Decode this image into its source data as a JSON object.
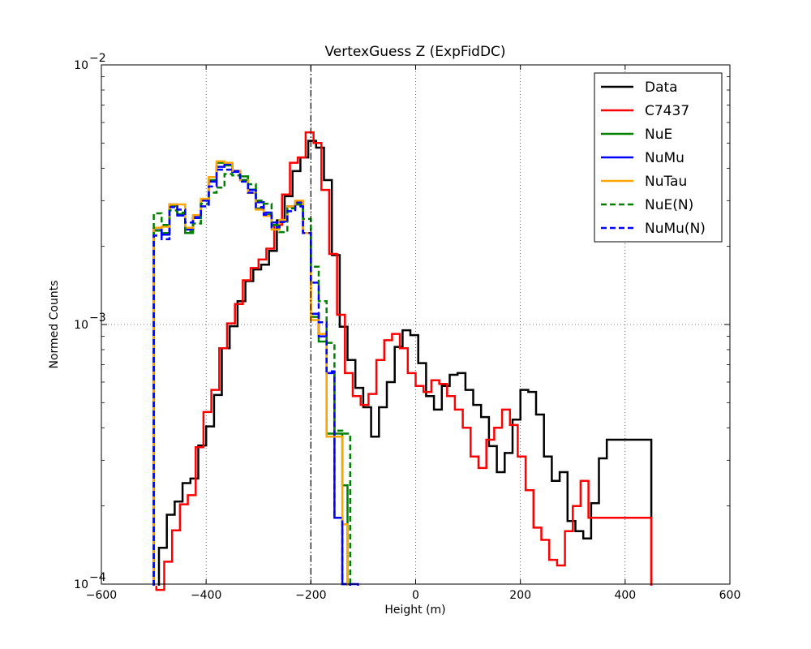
{
  "chart_data": {
    "type": "line",
    "step": "histogram",
    "title": "VertexGuess Z (ExpFidDC)",
    "xlabel": "Height (m)",
    "ylabel": "Normed Counts",
    "xlim": [
      -600,
      600
    ],
    "ylim": [
      0.0001,
      0.01
    ],
    "yscale": "log",
    "grid": true,
    "legend_position": "top-right",
    "x_ticks": [
      -600,
      -400,
      -200,
      0,
      200,
      400,
      600
    ],
    "x_tick_labels": [
      "−600",
      "−400",
      "−200",
      "0",
      "200",
      "400",
      "600"
    ],
    "y_ticks": [
      0.0001,
      0.001,
      0.01
    ],
    "y_tick_bases": [
      "10",
      "10",
      "10"
    ],
    "y_tick_exponents": [
      "−4",
      "−3",
      "−2"
    ],
    "reference_line": {
      "x": -200,
      "style": "dash-dot",
      "color": "#000000"
    },
    "series": [
      {
        "name": "Data",
        "color": "#000000",
        "dash": false,
        "x0": -490,
        "x1": 450,
        "bin_width": 15,
        "sequence": "fixed_bins",
        "values": [
          0.000138,
          0.000185,
          0.000208,
          0.000245,
          0.000255,
          0.000342,
          0.000405,
          0.000535,
          0.00081,
          0.000985,
          0.00123,
          0.00147,
          0.00163,
          0.0017,
          0.00192,
          0.00252,
          0.00312,
          0.0039,
          0.0044,
          0.0051,
          0.0048,
          0.0036,
          0.00185,
          0.00098,
          0.00073,
          0.00057,
          0.00048,
          0.00037,
          0.00048,
          0.0006,
          0.00082,
          0.00095,
          0.00091,
          0.00071,
          0.00053,
          0.00047,
          0.00058,
          0.00064,
          0.00065,
          0.00056,
          0.00049,
          0.00044,
          0.00034,
          0.00027,
          0.00032,
          0.00043,
          0.00056,
          0.00055,
          0.00045,
          0.00031,
          0.00025,
          0.00027,
          0.000175,
          0.00016,
          0.00015,
          0.000205,
          0.000305,
          0.00036
        ]
      },
      {
        "name": "C7437",
        "color": "#ff0000",
        "dash": false,
        "x0": -495,
        "x1": 450,
        "bin_width": 15,
        "sequence": "fixed_bins",
        "values": [
          9.5e-05,
          0.000122,
          0.000161,
          0.000203,
          0.00022,
          0.000337,
          0.00046,
          0.00056,
          0.00081,
          0.00101,
          0.0012,
          0.00148,
          0.00165,
          0.00178,
          0.00196,
          0.00242,
          0.00317,
          0.0042,
          0.0044,
          0.0055,
          0.005,
          0.0033,
          0.00187,
          0.00109,
          0.00065,
          0.00053,
          0.00049,
          0.00054,
          0.00073,
          0.00087,
          0.00092,
          0.00081,
          0.00065,
          0.00058,
          0.00055,
          0.00061,
          0.00059,
          0.00053,
          0.00047,
          0.0004,
          0.00031,
          0.00028,
          0.00036,
          0.0004,
          0.00047,
          0.00041,
          0.00031,
          0.00023,
          0.000165,
          0.000148,
          0.000124,
          0.000118,
          0.00016,
          0.0002,
          0.00025,
          0.00018
        ]
      },
      {
        "name": "NuE",
        "color": "#008000",
        "dash": false,
        "x0": -500,
        "x1": -130,
        "bin_width": 15,
        "sequence": "fixed_bins",
        "values": [
          0.0023,
          0.00225,
          0.00286,
          0.00266,
          0.00225,
          0.00257,
          0.00303,
          0.0036,
          0.0042,
          0.0041,
          0.0039,
          0.00372,
          0.00331,
          0.0028,
          0.00265,
          0.00242,
          0.0025,
          0.00285,
          0.0029,
          0.00225,
          0.00107,
          0.00086,
          0.00038,
          0.00038,
          0.00024
        ]
      },
      {
        "name": "NuMu",
        "color": "#0000ff",
        "dash": false,
        "x0": -500,
        "x1": -110,
        "bin_width": 15,
        "sequence": "fixed_bins",
        "values": [
          0.00235,
          0.00222,
          0.0029,
          0.00263,
          0.00232,
          0.00262,
          0.003,
          0.00355,
          0.00405,
          0.00415,
          0.00387,
          0.0036,
          0.0033,
          0.00296,
          0.0027,
          0.00247,
          0.0025,
          0.00285,
          0.00295,
          0.00225,
          0.0011,
          0.0009,
          0.00065,
          0.00018,
          0.0001
        ]
      },
      {
        "name": "NuTau",
        "color": "#ffa500",
        "dash": false,
        "x0": -500,
        "x1": -130,
        "bin_width": 15,
        "sequence": "fixed_bins",
        "values": [
          0.00236,
          0.00238,
          0.0029,
          0.0029,
          0.00236,
          0.00264,
          0.00305,
          0.0037,
          0.00425,
          0.0042,
          0.00391,
          0.0036,
          0.00321,
          0.00277,
          0.00262,
          0.00232,
          0.00253,
          0.00285,
          0.003,
          0.00225,
          0.00104,
          0.00092,
          0.00037,
          0.00037,
          0.00017
        ]
      },
      {
        "name": "NuE(N)",
        "color": "#008000",
        "dash": true,
        "x0": -500,
        "x1": -125,
        "bin_width": 15,
        "sequence": "fixed_bins",
        "values": [
          0.00268,
          0.00242,
          0.00275,
          0.0027,
          0.00228,
          0.00245,
          0.00292,
          0.00322,
          0.00337,
          0.0038,
          0.00375,
          0.0036,
          0.00347,
          0.003,
          0.00292,
          0.0024,
          0.00227,
          0.0028,
          0.0029,
          0.00255,
          0.00167,
          0.00123,
          0.00085,
          0.00039,
          0.00038
        ]
      },
      {
        "name": "NuMu(N)",
        "color": "#0000ff",
        "dash": true,
        "x0": -500,
        "x1": -125,
        "bin_width": 15,
        "sequence": "fixed_bins",
        "values": [
          0.0022,
          0.00213,
          0.00283,
          0.00277,
          0.00247,
          0.00257,
          0.00285,
          0.0034,
          0.00395,
          0.00395,
          0.0039,
          0.00355,
          0.00322,
          0.00283,
          0.00265,
          0.00237,
          0.00248,
          0.00273,
          0.00285,
          0.00225,
          0.00145,
          0.00102,
          0.00066,
          0.00018,
          0.0001
        ]
      }
    ]
  }
}
